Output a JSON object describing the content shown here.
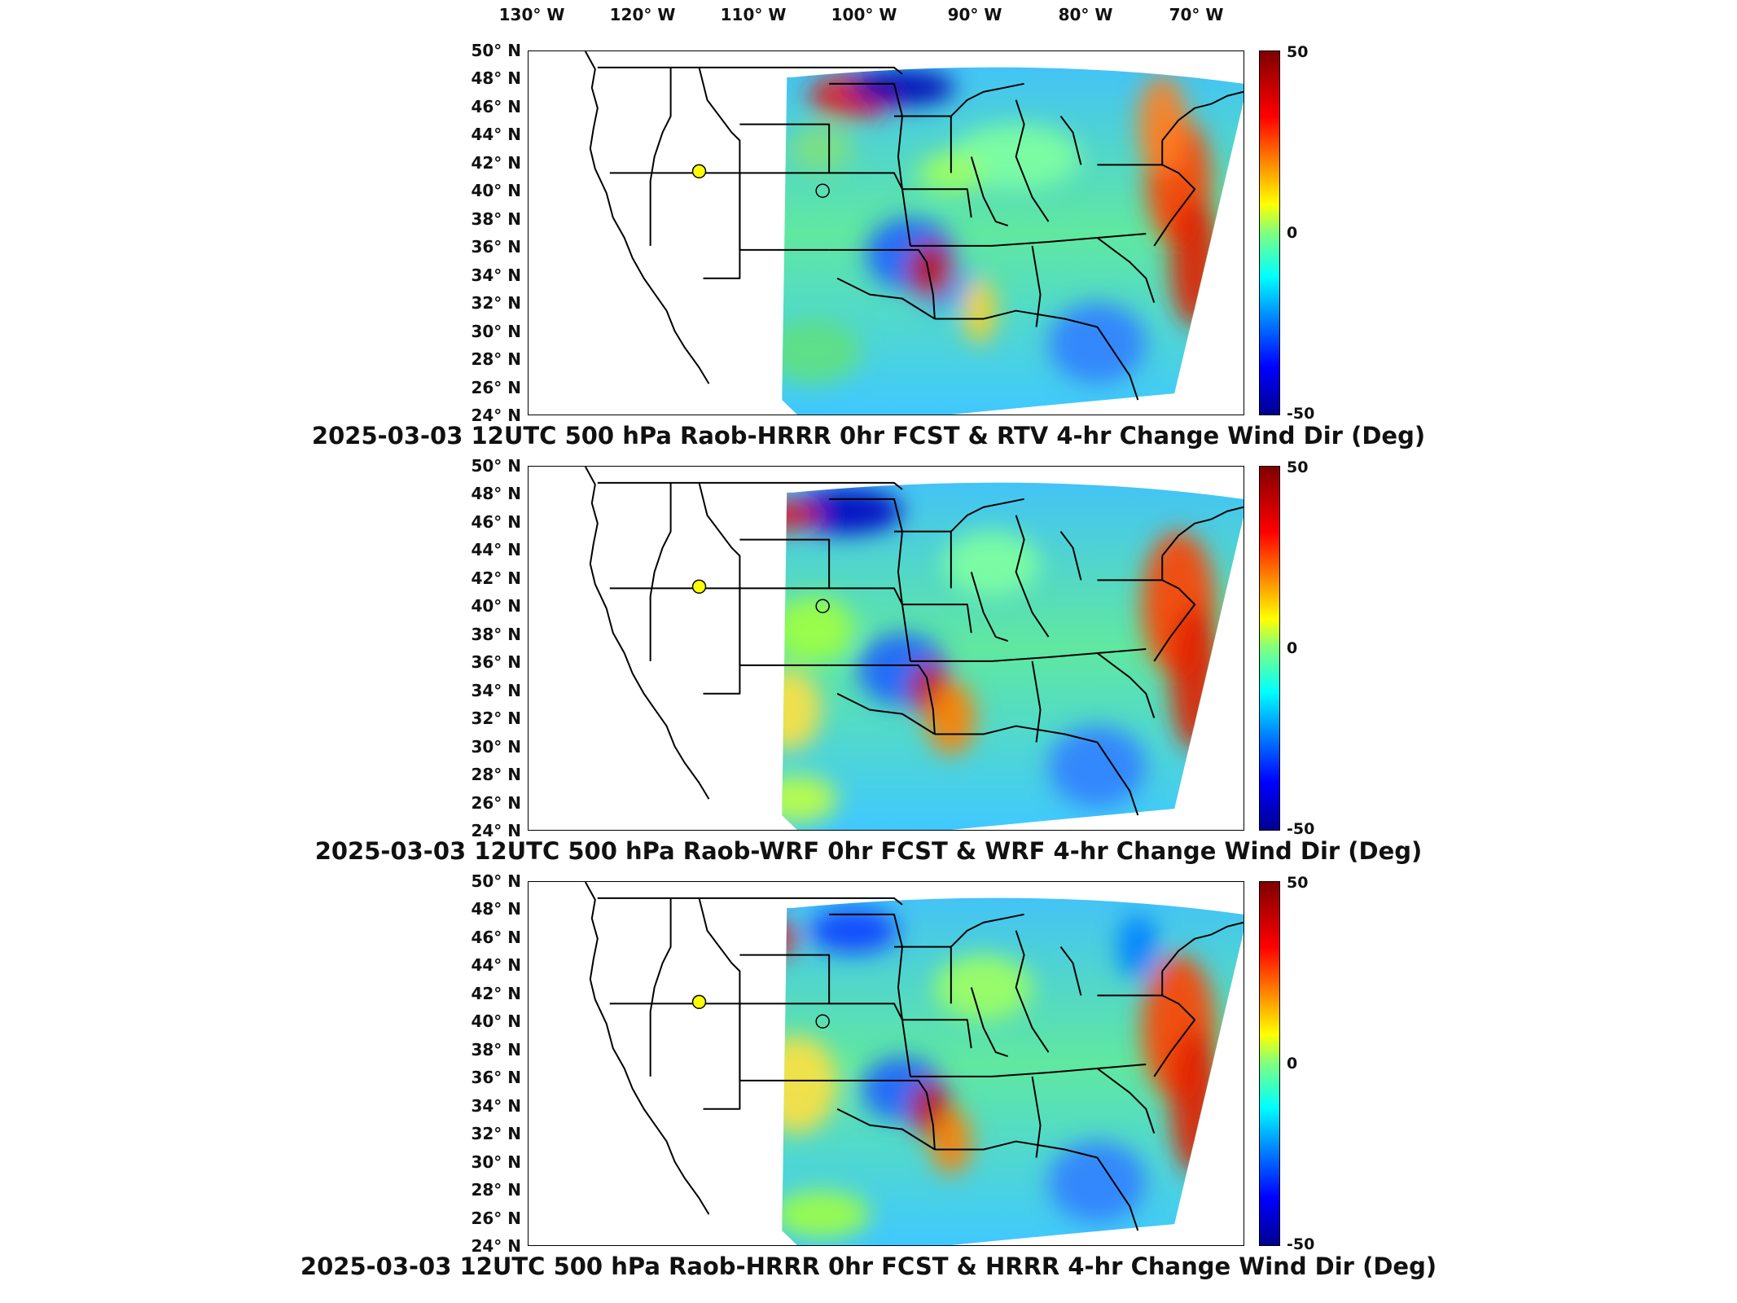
{
  "lon_labels": [
    "130° W",
    "120° W",
    "110° W",
    "100° W",
    "90° W",
    "80° W",
    "70° W"
  ],
  "lat_labels": [
    "50° N",
    "48° N",
    "46° N",
    "44° N",
    "42° N",
    "40° N",
    "38° N",
    "36° N",
    "34° N",
    "32° N",
    "30° N",
    "28° N",
    "26° N",
    "24° N"
  ],
  "colorbar": {
    "max_label": "50",
    "mid_label": "0",
    "min_label": "-50",
    "colormap": "jet"
  },
  "panels": [
    {
      "title": "2025-03-03 12UTC 500 hPa Raob-HRRR 0hr FCST & RTV 4-hr Change Wind Dir (Deg)"
    },
    {
      "title": "2025-03-03 12UTC 500 hPa Raob-WRF 0hr FCST & WRF 4-hr Change Wind Dir (Deg)"
    },
    {
      "title": "2025-03-03 12UTC 500 hPa Raob-HRRR 0hr FCST & HRRR 4-hr Change Wind Dir (Deg)"
    }
  ],
  "colors": {
    "marker_fill": "#ffff00",
    "border": "#000000"
  }
}
